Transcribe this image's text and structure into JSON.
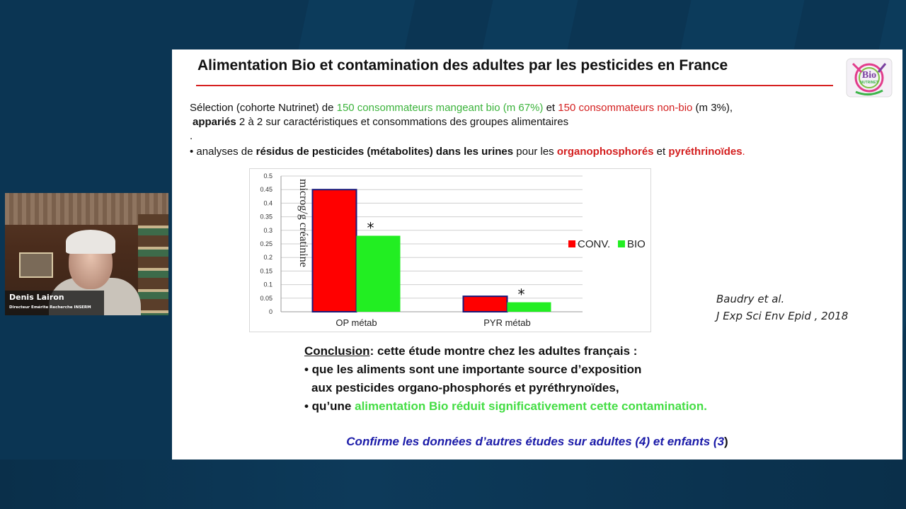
{
  "slide": {
    "title": "Alimentation Bio et contamination des adultes par les pesticides en France",
    "logo": {
      "icon": "bio-nutrinet-logo-icon",
      "text": "Bio",
      "subtext": "NUTRINET"
    },
    "selection": {
      "p1": "Sélection (cohorte Nutrinet) de ",
      "p2": "150 consommateurs mangeant bio (m 67%)",
      "p3": " et ",
      "p4": "150 consommateurs non-bio",
      "p5": " (m 3%),"
    },
    "paired": {
      "bold": "appariés",
      "rest": " 2 à 2 sur caractéristiques et consommations des groupes alimentaires"
    },
    "dot": ".",
    "analyses": {
      "bullet": "•",
      "p1": " analyses de ",
      "p2": "résidus de pesticides (métabolites) dans les urines",
      "p3": " pour les ",
      "p4": "organophosphorés",
      "p5": " et ",
      "p6": "pyréthrinoïdes",
      "p7": "."
    },
    "citation": {
      "line1": "Baudry et al.",
      "line2": "J Exp Sci Env Epid , 2018"
    },
    "conclusion": {
      "label": "Conclusion",
      "intro": ": cette étude montre chez les adultes français :",
      "b1_bullet": "•",
      "b1_line1": " que les aliments sont une importante source d’exposition",
      "b1_line2": "aux pesticides organo-phosphorés et pyréthrynoïdes,",
      "b2_bullet": "•",
      "b2_p1": " qu’une ",
      "b2_p2": "alimentation Bio réduit significativement cette contamination."
    },
    "confirm": {
      "text": "Confirme les données d’autres études sur adultes (4) et enfants (3",
      "close": ")"
    }
  },
  "chart_data": {
    "type": "bar",
    "categories": [
      "OP métab",
      "PYR métab"
    ],
    "series": [
      {
        "name": "CONV.",
        "values": [
          0.45,
          0.057
        ],
        "color": "#ff0000"
      },
      {
        "name": "BIO",
        "values": [
          0.28,
          0.035
        ],
        "color": "#22ee22"
      }
    ],
    "ylabel": "microg/g créatinine",
    "ylim": [
      0,
      0.5
    ],
    "yticks": [
      "0",
      "0.05",
      "0.1",
      "0.15",
      "0.2",
      "0.25",
      "0.3",
      "0.35",
      "0.4",
      "0.45",
      "0.5"
    ],
    "significance_marker": "*",
    "grid": true,
    "legend_position": "right"
  },
  "video": {
    "name": "Denis Lairon",
    "role": "Directeur Emérite Recherche INSERM"
  }
}
